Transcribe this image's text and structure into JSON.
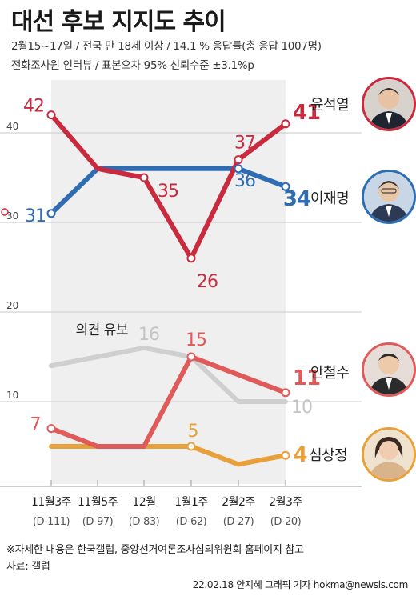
{
  "header": {
    "title": "대선 후보 지지도 추이",
    "subtitle1": "2월15~17일 / 전국 만 18세 이상 / 14.1 % 응답률(총 응답 1007명)",
    "subtitle2": "전화조사원 인터뷰 / 표본오차 95% 신뢰수준 ±3.1%p"
  },
  "footer": {
    "note": "※자세한 내용은 한국갤럽, 중앙선거여론조사심의위원회 홈페이지 참고",
    "source": "자료: 갤럽",
    "credit": "22.02.18 안지혜 그래픽 기자 hokma@newsis.com"
  },
  "colors": {
    "yoon": "#c92a3e",
    "lee": "#2f6db3",
    "ahn": "#e05a5a",
    "sim": "#e8a03a",
    "undecided": "#cfcfcf",
    "band": "#efefef"
  },
  "chart_data": {
    "type": "line",
    "categories": [
      "11월3주",
      "11월5주",
      "12월",
      "1월1주",
      "2월2주",
      "2월3주"
    ],
    "category_sublabels": [
      "(D-111)",
      "(D-97)",
      "(D-83)",
      "(D-62)",
      "(D-27)",
      "(D-20)"
    ],
    "yticks": [
      10,
      20,
      30,
      40
    ],
    "ylim": [
      0,
      45
    ],
    "break_between": [
      20,
      30
    ],
    "series": [
      {
        "name": "윤석열",
        "key": "yoon",
        "values": [
          42,
          36,
          35,
          26,
          37,
          41
        ],
        "labels": [
          "42",
          "",
          "35",
          "26",
          "37",
          "41"
        ]
      },
      {
        "name": "이재명",
        "key": "lee",
        "values": [
          31,
          36,
          36,
          36,
          36,
          34
        ],
        "labels": [
          "31",
          "",
          "",
          "",
          "36",
          "34"
        ]
      },
      {
        "name": "의견 유보",
        "key": "undecided",
        "values": [
          14,
          15,
          16,
          15,
          10,
          10
        ],
        "labels": [
          "",
          "",
          "16",
          "",
          "",
          "10"
        ]
      },
      {
        "name": "안철수",
        "key": "ahn",
        "values": [
          7,
          5,
          5,
          15,
          13,
          11
        ],
        "labels": [
          "7",
          "",
          "",
          "15",
          "",
          "11"
        ]
      },
      {
        "name": "심상정",
        "key": "sim",
        "values": [
          5,
          5,
          5,
          5,
          3,
          4
        ],
        "labels": [
          "",
          "",
          "",
          "5",
          "",
          "4"
        ]
      }
    ]
  }
}
